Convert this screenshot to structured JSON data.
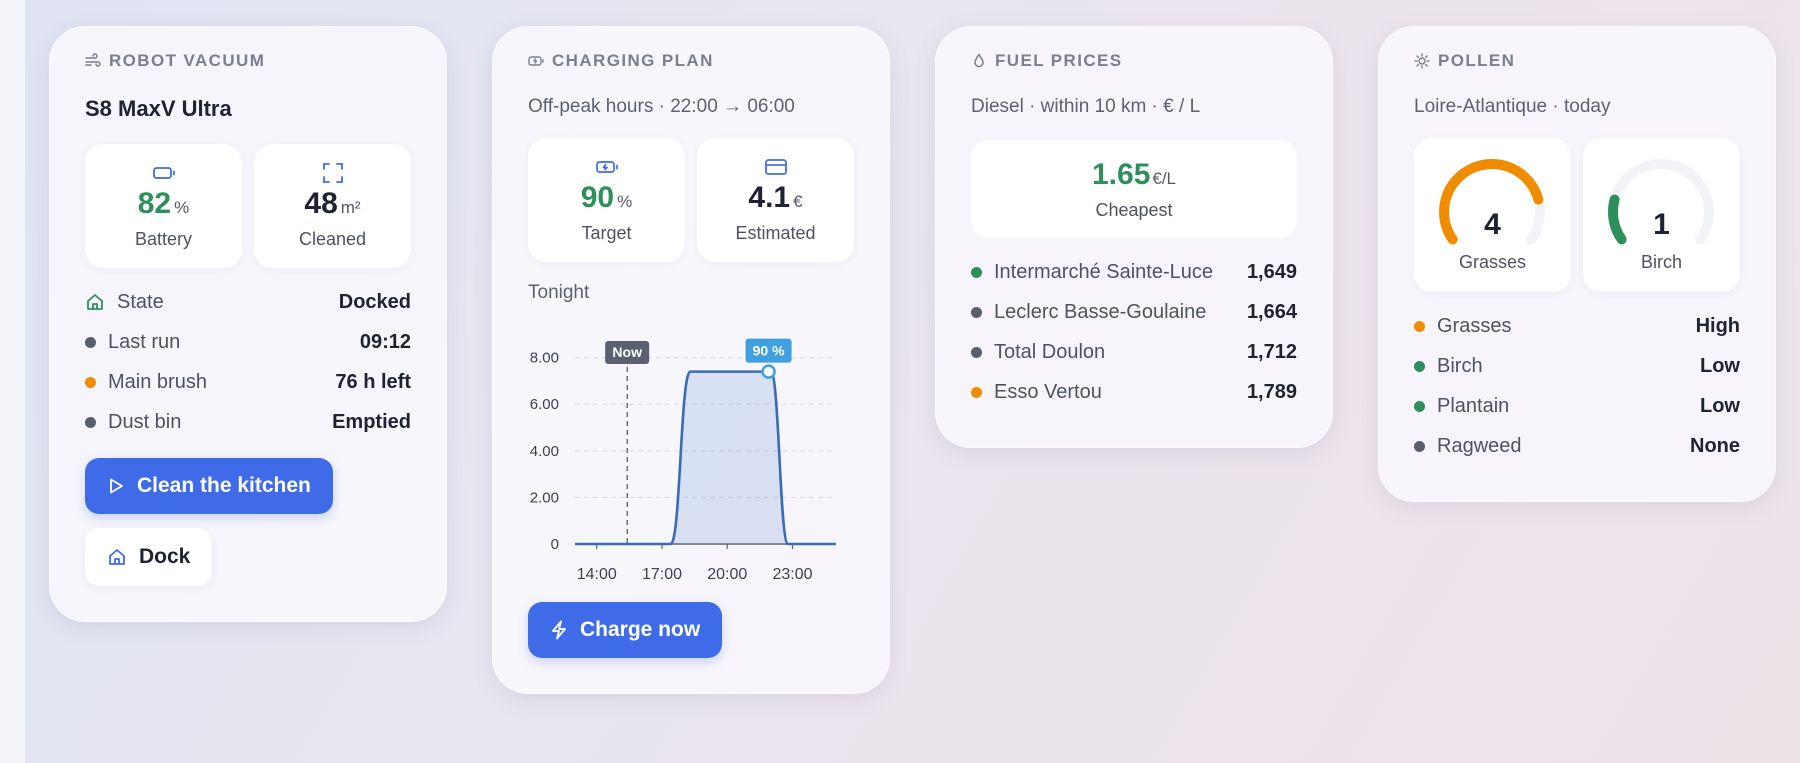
{
  "colors": {
    "accent": "#3f6be8",
    "green": "#2f8f5c",
    "orange": "#f08c00",
    "grey": "#5a5e6b",
    "chart_line": "#3a6cb4"
  },
  "robot": {
    "title": "ROBOT VACUUM",
    "model": "S8 MaxV Ultra",
    "tiles": [
      {
        "icon": "battery-icon",
        "value": "82",
        "unit": "%",
        "label": "Battery"
      },
      {
        "icon": "area-icon",
        "value": "48",
        "unit": "m²",
        "label": "Cleaned"
      }
    ],
    "rows": [
      {
        "icon": "home-icon",
        "label": "State",
        "value": "Docked"
      },
      {
        "color": "grey",
        "label": "Last run",
        "value": "09:12"
      },
      {
        "color": "orange",
        "label": "Main brush",
        "value": "76 h left"
      },
      {
        "color": "grey",
        "label": "Dust bin",
        "value": "Emptied"
      }
    ],
    "primary_button": "Clean the kitchen",
    "secondary_button": "Dock"
  },
  "charging": {
    "title": "CHARGING PLAN",
    "subtitle": "Off-peak hours · 22:00 → 06:00",
    "tiles": [
      {
        "icon": "battery-charging-icon",
        "value": "90",
        "unit": "%",
        "label": "Target"
      },
      {
        "icon": "card-icon",
        "value": "4.1",
        "unit": "€",
        "label": "Estimated"
      }
    ],
    "chart_label": "Tonight",
    "button": "Charge now"
  },
  "chart_data": {
    "type": "area",
    "x_ticks": [
      "14:00",
      "17:00",
      "20:00",
      "23:00"
    ],
    "y_ticks": [
      "0",
      "2.00",
      "4.00",
      "6.00",
      "8.00"
    ],
    "ylim": [
      0,
      8.5
    ],
    "xlim": [
      13.0,
      25.0
    ],
    "points": [
      {
        "x": 13.0,
        "y": 0
      },
      {
        "x": 17.4,
        "y": 0
      },
      {
        "x": 18.3,
        "y": 7.4
      },
      {
        "x": 22.0,
        "y": 7.4
      },
      {
        "x": 22.8,
        "y": 0
      },
      {
        "x": 25.0,
        "y": 0
      }
    ],
    "now_x": 15.4,
    "now_label": "Now",
    "marker": {
      "x": 21.9,
      "y": 7.4,
      "label": "90 %"
    },
    "grid": true
  },
  "fuel": {
    "title": "FUEL PRICES",
    "subtitle": "Diesel · within 10 km · € / L",
    "cheapest": {
      "value": "1.65",
      "unit": "€/L",
      "label": "Cheapest"
    },
    "stations": [
      {
        "color": "green",
        "name": "Intermarché Sainte-Luce",
        "price": "1,649"
      },
      {
        "color": "grey",
        "name": "Leclerc Basse-Goulaine",
        "price": "1,664"
      },
      {
        "color": "grey",
        "name": "Total Doulon",
        "price": "1,712"
      },
      {
        "color": "orange",
        "name": "Esso Vertou",
        "price": "1,789"
      }
    ]
  },
  "pollen": {
    "title": "POLLEN",
    "subtitle": "Loire-Atlantique · today",
    "gauges": [
      {
        "value": "4",
        "level": 0.8,
        "color": "orange",
        "label": "Grasses"
      },
      {
        "value": "1",
        "level": 0.2,
        "color": "green",
        "label": "Birch"
      }
    ],
    "rows": [
      {
        "color": "orange",
        "label": "Grasses",
        "value": "High"
      },
      {
        "color": "green",
        "label": "Birch",
        "value": "Low"
      },
      {
        "color": "green",
        "label": "Plantain",
        "value": "Low"
      },
      {
        "color": "grey",
        "label": "Ragweed",
        "value": "None"
      }
    ]
  }
}
